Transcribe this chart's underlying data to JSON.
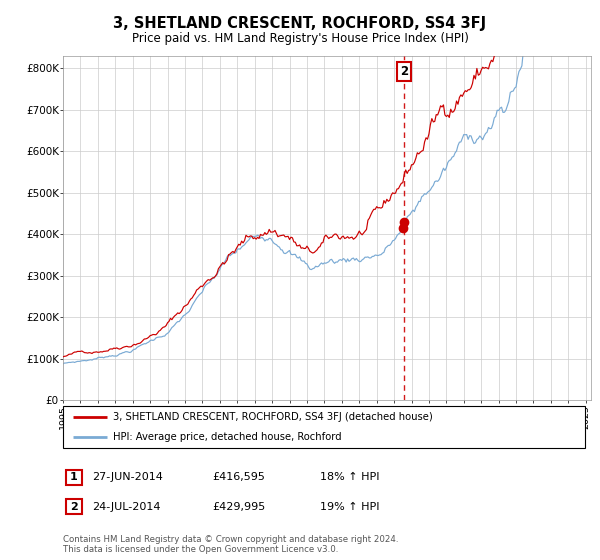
{
  "title": "3, SHETLAND CRESCENT, ROCHFORD, SS4 3FJ",
  "subtitle": "Price paid vs. HM Land Registry's House Price Index (HPI)",
  "ylabel_ticks": [
    "£0",
    "£100K",
    "£200K",
    "£300K",
    "£400K",
    "£500K",
    "£600K",
    "£700K",
    "£800K"
  ],
  "ytick_values": [
    0,
    100000,
    200000,
    300000,
    400000,
    500000,
    600000,
    700000,
    800000
  ],
  "ylim": [
    0,
    830000
  ],
  "xlim_start": 1995.0,
  "xlim_end": 2025.3,
  "sale1_date": 2014.49,
  "sale1_price": 416595,
  "sale2_date": 2014.56,
  "sale2_price": 429995,
  "line_red_color": "#cc0000",
  "line_blue_color": "#7aaad4",
  "grid_color": "#cccccc",
  "legend_label_red": "3, SHETLAND CRESCENT, ROCHFORD, SS4 3FJ (detached house)",
  "legend_label_blue": "HPI: Average price, detached house, Rochford",
  "footnote": "Contains HM Land Registry data © Crown copyright and database right 2024.\nThis data is licensed under the Open Government Licence v3.0.",
  "table_rows": [
    {
      "label": "1",
      "date": "27-JUN-2014",
      "price": "£416,595",
      "hpi": "18% ↑ HPI"
    },
    {
      "label": "2",
      "date": "24-JUL-2014",
      "price": "£429,995",
      "hpi": "19% ↑ HPI"
    }
  ],
  "bg_color": "#ffffff"
}
